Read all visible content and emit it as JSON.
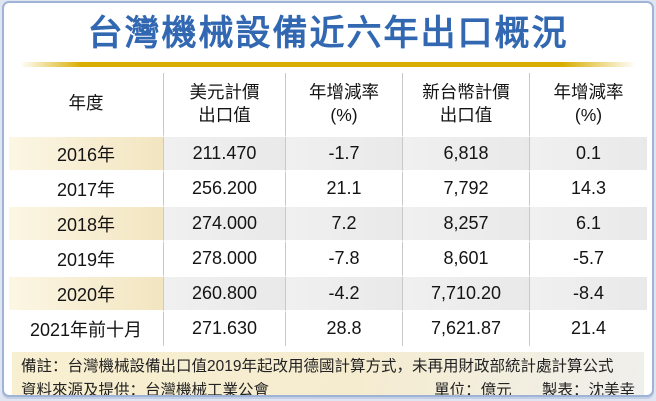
{
  "title": "台灣機械設備近六年出口概況",
  "table": {
    "headers": {
      "year": "年度",
      "usd": [
        "美元計價",
        "出口值"
      ],
      "usd_yoy": [
        "年增減率",
        "(%)"
      ],
      "ntd": [
        "新台幣計價",
        "出口值"
      ],
      "ntd_yoy": [
        "年增減率",
        "(%)"
      ]
    },
    "rows": [
      {
        "year": "2016年",
        "usd": "211.470",
        "usd_yoy": "-1.7",
        "ntd": "6,818",
        "ntd_yoy": "0.1"
      },
      {
        "year": "2017年",
        "usd": "256.200",
        "usd_yoy": "21.1",
        "ntd": "7,792",
        "ntd_yoy": "14.3"
      },
      {
        "year": "2018年",
        "usd": "274.000",
        "usd_yoy": "7.2",
        "ntd": "8,257",
        "ntd_yoy": "6.1"
      },
      {
        "year": "2019年",
        "usd": "278.000",
        "usd_yoy": "-7.8",
        "ntd": "8,601",
        "ntd_yoy": "-5.7"
      },
      {
        "year": "2020年",
        "usd": "260.800",
        "usd_yoy": "-4.2",
        "ntd": "7,710.20",
        "ntd_yoy": "-8.4"
      },
      {
        "year": "2021年前十月",
        "usd": "271.630",
        "usd_yoy": "28.8",
        "ntd": "7,621.87",
        "ntd_yoy": "21.4"
      }
    ]
  },
  "footer": {
    "note": "備註：台灣機械設備出口值2019年起改用德國計算方式，未再用財政部統計處計算公式",
    "source": "資料來源及提供：台灣機械工業公會",
    "unit": "單位：億元",
    "author": "製表：沈美幸"
  },
  "colors": {
    "title_blue": "#3268b2",
    "gold_line": "#d9ae00",
    "frame_border": "#9fb3d7",
    "year_cell_cream": "#f2e5c0",
    "shaded_row_gray": "#ebebeb",
    "footer_cream": "#f7eed1",
    "separator_gray": "#c9c9c9"
  },
  "chart_data": {
    "type": "table",
    "title": "台灣機械設備近六年出口概況",
    "unit": "億元",
    "columns": [
      "年度",
      "美元計價出口值",
      "年增減率(%)",
      "新台幣計價出口值",
      "年增減率(%)"
    ],
    "rows": [
      [
        "2016年",
        211.47,
        -1.7,
        6818,
        0.1
      ],
      [
        "2017年",
        256.2,
        21.1,
        7792,
        14.3
      ],
      [
        "2018年",
        274.0,
        7.2,
        8257,
        6.1
      ],
      [
        "2019年",
        278.0,
        -7.8,
        8601,
        -5.7
      ],
      [
        "2020年",
        260.8,
        -4.2,
        7710.2,
        -8.4
      ],
      [
        "2021年前十月",
        271.63,
        28.8,
        7621.87,
        21.4
      ]
    ],
    "notes": [
      "備註：台灣機械設備出口值2019年起改用德國計算方式，未再用財政部統計處計算公式",
      "資料來源及提供：台灣機械工業公會"
    ],
    "author": "沈美幸"
  }
}
